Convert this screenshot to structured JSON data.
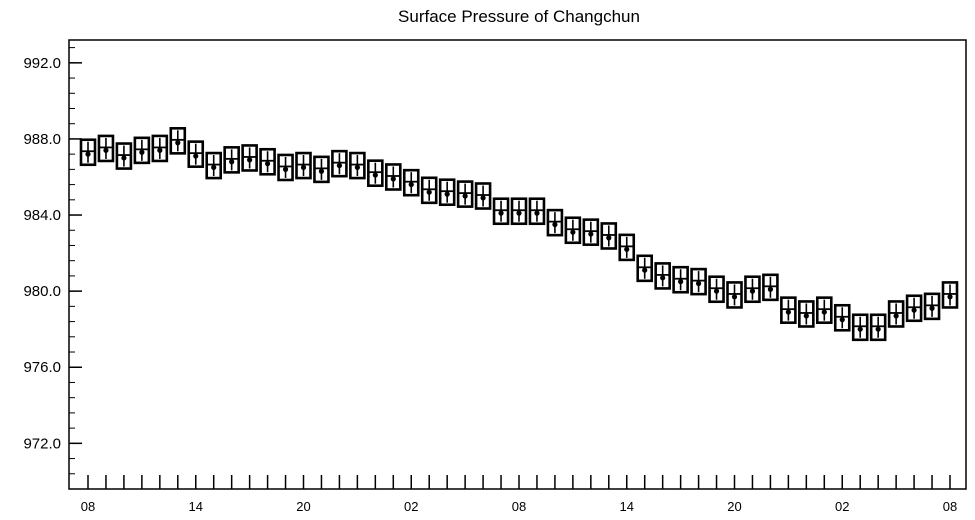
{
  "chart_data": {
    "type": "box",
    "title": "Surface Pressure of Changchun",
    "xlabel": "",
    "ylabel": "",
    "ylim": [
      969.6,
      993.2
    ],
    "y_ticks": [
      "992.0",
      "988.0",
      "984.0",
      "980.0",
      "976.0",
      "972.0"
    ],
    "y_tick_values": [
      992,
      988,
      984,
      980,
      976,
      972
    ],
    "x_tick_labels": [
      "08",
      "14",
      "20",
      "02",
      "08",
      "14",
      "20",
      "02",
      "08"
    ],
    "x_tick_index": [
      0,
      6,
      12,
      18,
      24,
      30,
      36,
      42,
      48
    ],
    "n_steps": 49,
    "x_step_hours": 1,
    "grid": false,
    "series": [
      {
        "values": [
          987.2,
          987.4,
          987.0,
          987.3,
          987.4,
          987.8,
          987.1,
          986.5,
          986.8,
          986.9,
          986.7,
          986.4,
          986.5,
          986.3,
          986.6,
          986.5,
          986.1,
          985.9,
          985.6,
          985.2,
          985.1,
          985.0,
          984.9,
          984.1,
          984.1,
          984.1,
          983.5,
          983.1,
          983.0,
          982.8,
          982.2,
          981.1,
          980.7,
          980.5,
          980.4,
          980.0,
          979.7,
          980.0,
          980.1,
          978.9,
          978.7,
          978.9,
          978.5,
          978.0,
          978.0,
          978.7,
          979.0,
          979.1,
          979.7
        ],
        "ranges": [
          [
            986.8,
            987.8
          ],
          [
            987.0,
            988.0
          ],
          [
            986.6,
            987.6
          ],
          [
            986.9,
            987.9
          ],
          [
            987.0,
            988.0
          ],
          [
            987.4,
            988.4
          ],
          [
            986.7,
            987.7
          ],
          [
            986.1,
            987.1
          ],
          [
            986.4,
            987.4
          ],
          [
            986.5,
            987.5
          ],
          [
            986.3,
            987.3
          ],
          [
            986.0,
            987.0
          ],
          [
            986.1,
            987.1
          ],
          [
            985.9,
            986.9
          ],
          [
            986.2,
            987.2
          ],
          [
            986.1,
            987.1
          ],
          [
            985.7,
            986.7
          ],
          [
            985.5,
            986.5
          ],
          [
            985.2,
            986.2
          ],
          [
            984.8,
            985.8
          ],
          [
            984.7,
            985.7
          ],
          [
            984.6,
            985.6
          ],
          [
            984.5,
            985.5
          ],
          [
            983.7,
            984.7
          ],
          [
            983.7,
            984.7
          ],
          [
            983.7,
            984.7
          ],
          [
            983.1,
            984.1
          ],
          [
            982.7,
            983.7
          ],
          [
            982.6,
            983.6
          ],
          [
            982.4,
            983.4
          ],
          [
            981.8,
            982.8
          ],
          [
            980.7,
            981.7
          ],
          [
            980.3,
            981.3
          ],
          [
            980.1,
            981.1
          ],
          [
            980.0,
            981.0
          ],
          [
            979.6,
            980.6
          ],
          [
            979.3,
            980.3
          ],
          [
            979.6,
            980.6
          ],
          [
            979.7,
            980.7
          ],
          [
            978.5,
            979.5
          ],
          [
            978.3,
            979.3
          ],
          [
            978.5,
            979.5
          ],
          [
            978.1,
            979.1
          ],
          [
            977.6,
            978.6
          ],
          [
            977.6,
            978.6
          ],
          [
            978.3,
            979.3
          ],
          [
            978.6,
            979.6
          ],
          [
            978.7,
            979.7
          ],
          [
            979.3,
            980.3
          ]
        ]
      }
    ]
  }
}
